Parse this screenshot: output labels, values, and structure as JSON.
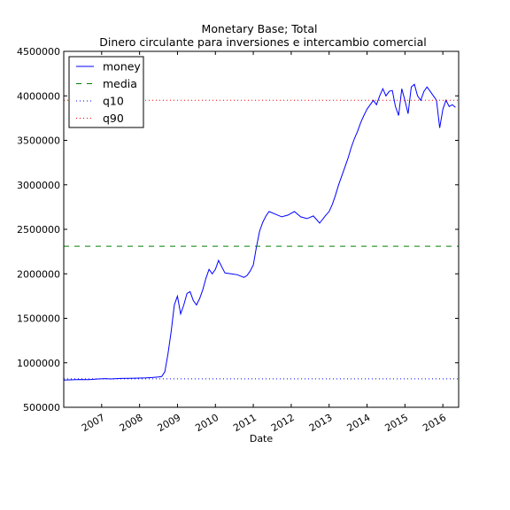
{
  "chart_data": {
    "type": "line",
    "title": "Monetary Base; Total",
    "subtitle": "Dinero circulante para inversiones e intercambio comercial",
    "xlabel": "Date",
    "ylabel": "",
    "xlim": [
      "2006-01",
      "2016-06"
    ],
    "ylim": [
      500000,
      4500000
    ],
    "grid": false,
    "legend_position": "top-left",
    "x_ticks": [
      {
        "label": "2007",
        "x": "2007-01"
      },
      {
        "label": "2008",
        "x": "2008-01"
      },
      {
        "label": "2009",
        "x": "2009-01"
      },
      {
        "label": "2010",
        "x": "2010-01"
      },
      {
        "label": "2011",
        "x": "2011-01"
      },
      {
        "label": "2012",
        "x": "2012-01"
      },
      {
        "label": "2013",
        "x": "2013-01"
      },
      {
        "label": "2014",
        "x": "2014-01"
      },
      {
        "label": "2015",
        "x": "2015-01"
      },
      {
        "label": "2016",
        "x": "2016-01"
      }
    ],
    "y_ticks": [
      {
        "label": "500000",
        "value": 500000
      },
      {
        "label": "1000000",
        "value": 1000000
      },
      {
        "label": "1500000",
        "value": 1500000
      },
      {
        "label": "2000000",
        "value": 2000000
      },
      {
        "label": "2500000",
        "value": 2500000
      },
      {
        "label": "3000000",
        "value": 3000000
      },
      {
        "label": "3500000",
        "value": 3500000
      },
      {
        "label": "4000000",
        "value": 4000000
      },
      {
        "label": "4500000",
        "value": 4500000
      }
    ],
    "series": [
      {
        "name": "money",
        "color": "#0000ff",
        "style": "solid",
        "points": [
          [
            "2006-01",
            805000
          ],
          [
            "2006-03",
            808000
          ],
          [
            "2006-06",
            812000
          ],
          [
            "2006-09",
            810000
          ],
          [
            "2006-12",
            818000
          ],
          [
            "2007-02",
            822000
          ],
          [
            "2007-04",
            818000
          ],
          [
            "2007-07",
            824000
          ],
          [
            "2007-10",
            826000
          ],
          [
            "2008-01",
            828000
          ],
          [
            "2008-03",
            830000
          ],
          [
            "2008-05",
            834000
          ],
          [
            "2008-07",
            840000
          ],
          [
            "2008-08",
            845000
          ],
          [
            "2008-09",
            900000
          ],
          [
            "2008-10",
            1100000
          ],
          [
            "2008-11",
            1350000
          ],
          [
            "2008-12",
            1650000
          ],
          [
            "2009-01",
            1750000
          ],
          [
            "2009-02",
            1550000
          ],
          [
            "2009-03",
            1650000
          ],
          [
            "2009-04",
            1780000
          ],
          [
            "2009-05",
            1800000
          ],
          [
            "2009-06",
            1700000
          ],
          [
            "2009-07",
            1650000
          ],
          [
            "2009-08",
            1720000
          ],
          [
            "2009-09",
            1820000
          ],
          [
            "2009-10",
            1950000
          ],
          [
            "2009-11",
            2050000
          ],
          [
            "2009-12",
            2000000
          ],
          [
            "2010-01",
            2050000
          ],
          [
            "2010-02",
            2150000
          ],
          [
            "2010-03",
            2080000
          ],
          [
            "2010-04",
            2010000
          ],
          [
            "2010-06",
            2000000
          ],
          [
            "2010-08",
            1990000
          ],
          [
            "2010-10",
            1960000
          ],
          [
            "2010-11",
            1980000
          ],
          [
            "2010-12",
            2030000
          ],
          [
            "2011-01",
            2100000
          ],
          [
            "2011-02",
            2300000
          ],
          [
            "2011-03",
            2480000
          ],
          [
            "2011-04",
            2580000
          ],
          [
            "2011-05",
            2650000
          ],
          [
            "2011-06",
            2700000
          ],
          [
            "2011-08",
            2670000
          ],
          [
            "2011-10",
            2640000
          ],
          [
            "2011-12",
            2660000
          ],
          [
            "2012-02",
            2700000
          ],
          [
            "2012-04",
            2640000
          ],
          [
            "2012-06",
            2620000
          ],
          [
            "2012-08",
            2650000
          ],
          [
            "2012-10",
            2570000
          ],
          [
            "2012-12",
            2660000
          ],
          [
            "2013-01",
            2700000
          ],
          [
            "2013-02",
            2780000
          ],
          [
            "2013-03",
            2880000
          ],
          [
            "2013-04",
            3000000
          ],
          [
            "2013-05",
            3100000
          ],
          [
            "2013-06",
            3200000
          ],
          [
            "2013-07",
            3300000
          ],
          [
            "2013-08",
            3420000
          ],
          [
            "2013-09",
            3520000
          ],
          [
            "2013-10",
            3600000
          ],
          [
            "2013-11",
            3700000
          ],
          [
            "2013-12",
            3780000
          ],
          [
            "2014-01",
            3850000
          ],
          [
            "2014-02",
            3900000
          ],
          [
            "2014-03",
            3950000
          ],
          [
            "2014-04",
            3900000
          ],
          [
            "2014-05",
            4000000
          ],
          [
            "2014-06",
            4080000
          ],
          [
            "2014-07",
            4000000
          ],
          [
            "2014-08",
            4050000
          ],
          [
            "2014-09",
            4060000
          ],
          [
            "2014-10",
            3880000
          ],
          [
            "2014-11",
            3780000
          ],
          [
            "2014-12",
            4080000
          ],
          [
            "2015-01",
            3950000
          ],
          [
            "2015-02",
            3800000
          ],
          [
            "2015-03",
            4100000
          ],
          [
            "2015-04",
            4130000
          ],
          [
            "2015-05",
            4000000
          ],
          [
            "2015-06",
            3950000
          ],
          [
            "2015-07",
            4050000
          ],
          [
            "2015-08",
            4100000
          ],
          [
            "2015-09",
            4050000
          ],
          [
            "2015-10",
            4000000
          ],
          [
            "2015-11",
            3950000
          ],
          [
            "2015-12",
            3640000
          ],
          [
            "2016-01",
            3850000
          ],
          [
            "2016-02",
            3950000
          ],
          [
            "2016-03",
            3880000
          ],
          [
            "2016-04",
            3900000
          ],
          [
            "2016-05",
            3870000
          ]
        ]
      },
      {
        "name": "media",
        "color": "#008000",
        "style": "dashed",
        "value": 2310000
      },
      {
        "name": "q10",
        "color": "#0000ff",
        "style": "dotted",
        "value": 820000
      },
      {
        "name": "q90",
        "color": "#ff0000",
        "style": "dotted",
        "value": 3950000
      }
    ]
  }
}
